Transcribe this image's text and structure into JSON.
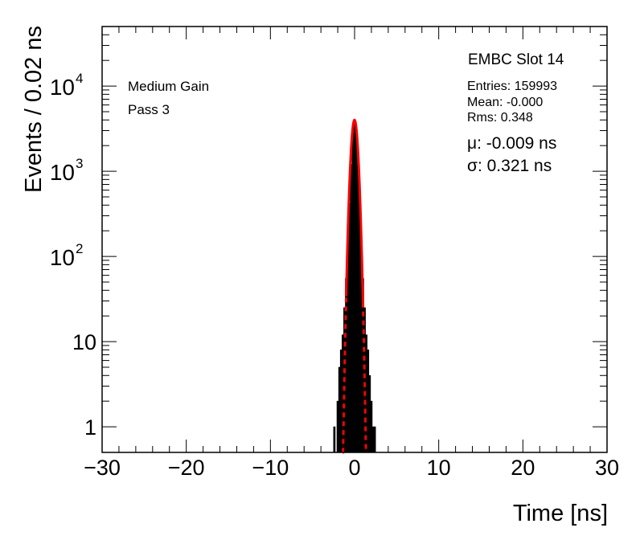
{
  "chart_data": {
    "type": "histogram",
    "title": "EMBC Slot 14",
    "xlabel": "Time [ns]",
    "ylabel": "Events / 0.02 ns",
    "xlim": [
      -30,
      30
    ],
    "ylim": [
      0.5,
      50000
    ],
    "y_scale": "log",
    "grid": false,
    "x_ticks": [
      "−30",
      "−20",
      "−10",
      "0",
      "10",
      "20",
      "30"
    ],
    "y_ticks": [
      {
        "value": 1,
        "label": "1"
      },
      {
        "value": 10,
        "label": "10"
      },
      {
        "value": 100,
        "base": "10",
        "exp": "2"
      },
      {
        "value": 1000,
        "base": "10",
        "exp": "3"
      },
      {
        "value": 10000,
        "base": "10",
        "exp": "4"
      }
    ],
    "annotations": [
      "Medium Gain",
      "Pass 3"
    ],
    "stats": {
      "entries": "Entries: 159993",
      "mean": "Mean: -0.000",
      "rms": "Rms: 0.348"
    },
    "fit_results": {
      "mu": "μ: -0.009 ns",
      "sigma": "σ: 0.321 ns"
    },
    "series": [
      {
        "kind": "histogram",
        "color": "#000000",
        "x": [
          -2.4,
          -2.2,
          -2.0,
          -1.8,
          -1.6,
          -1.4,
          -1.2,
          -1.0,
          -0.8,
          -0.6,
          -0.4,
          -0.2,
          0.0,
          0.2,
          0.4,
          0.6,
          0.8,
          1.0,
          1.2,
          1.4,
          1.6,
          1.8,
          2.0,
          2.2,
          2.4
        ],
        "values": [
          1,
          0,
          2,
          5,
          8,
          12,
          25,
          55,
          140,
          420,
          1200,
          2800,
          4000,
          2800,
          1200,
          420,
          140,
          55,
          25,
          12,
          8,
          4,
          2,
          1,
          1
        ]
      },
      {
        "kind": "gaussian-fit",
        "color": "#ff0000",
        "amplitude": 4000,
        "mean": -0.009,
        "sigma": 0.321,
        "solid_range": [
          -1.0,
          1.0
        ],
        "dashed_range": [
          -1.4,
          1.4
        ]
      }
    ]
  }
}
